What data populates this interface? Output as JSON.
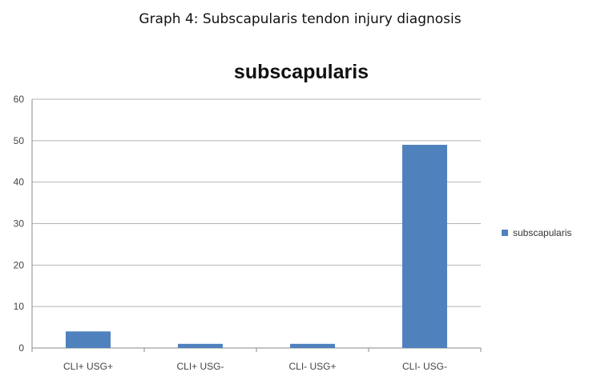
{
  "caption": "Graph 4: Subscapularis tendon injury diagnosis",
  "chart_data": {
    "type": "bar",
    "title": "subscapularis",
    "categories": [
      "CLI+ USG+",
      "CLI+ USG-",
      "CLI- USG+",
      "CLI- USG-"
    ],
    "series": [
      {
        "name": "subscapularis",
        "values": [
          4,
          1,
          1,
          49
        ],
        "color": "#4F81BD"
      }
    ],
    "ylim": [
      0,
      60
    ],
    "yticks": [
      0,
      10,
      20,
      30,
      40,
      50,
      60
    ],
    "grid": true,
    "legend": "right",
    "xlabel": "",
    "ylabel": ""
  }
}
